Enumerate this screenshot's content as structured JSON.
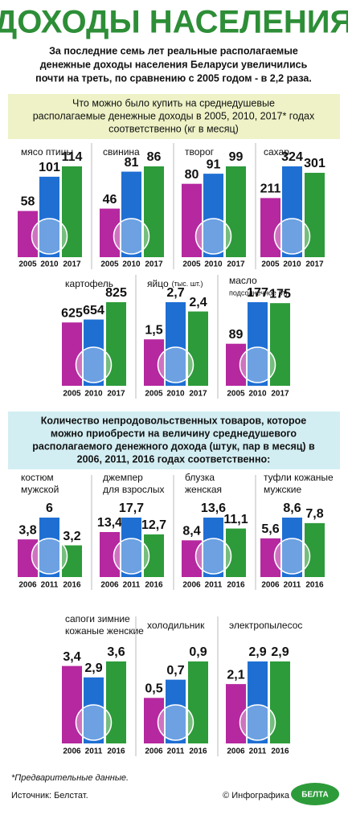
{
  "header": {
    "title": "ДОХОДЫ НАСЕЛЕНИЯ",
    "intro": [
      "За последние семь лет реальные располагаемые",
      "денежные доходы населения Беларуси увеличились",
      "почти на треть, по сравнению с 2005 годом - в 2,2 раза."
    ]
  },
  "sections": [
    {
      "title": [
        "Что можно было купить на среднедушевые",
        "располагаемые денежные доходы в 2005, 2010, 2017* годах",
        "соответственно (кг в месяц)"
      ]
    },
    {
      "title": [
        "Количество непродовольственных товаров, которое",
        "можно приобрести на величину среднедушевого",
        "располагаемого денежного дохода (штук, пар в месяц) в",
        "2006, 2011, 2016 годах соответственно:"
      ]
    }
  ],
  "chart_data": [
    {
      "type": "bar",
      "title": [
        "мясо птицы"
      ],
      "categories": [
        "2005",
        "2010",
        "2017"
      ],
      "values": [
        58,
        101,
        114
      ],
      "colors": [
        "#b5289f",
        "#1f6fd3",
        "#2d9b3a"
      ]
    },
    {
      "type": "bar",
      "title": [
        "свинина"
      ],
      "categories": [
        "2005",
        "2010",
        "2017"
      ],
      "values": [
        46,
        81,
        86
      ],
      "colors": [
        "#b5289f",
        "#1f6fd3",
        "#2d9b3a"
      ]
    },
    {
      "type": "bar",
      "title": [
        "творог"
      ],
      "categories": [
        "2005",
        "2010",
        "2017"
      ],
      "values": [
        80,
        91,
        99
      ],
      "colors": [
        "#b5289f",
        "#1f6fd3",
        "#2d9b3a"
      ]
    },
    {
      "type": "bar",
      "title": [
        "сахар"
      ],
      "categories": [
        "2005",
        "2010",
        "2017"
      ],
      "values": [
        211,
        324,
        301
      ],
      "colors": [
        "#b5289f",
        "#1f6fd3",
        "#2d9b3a"
      ]
    },
    {
      "type": "bar",
      "title": [
        "картофель"
      ],
      "categories": [
        "2005",
        "2010",
        "2017"
      ],
      "values": [
        625,
        654,
        825
      ],
      "colors": [
        "#b5289f",
        "#1f6fd3",
        "#2d9b3a"
      ]
    },
    {
      "type": "bar",
      "title": [
        "яйцо"
      ],
      "unit": "(тыс. шт.)",
      "categories": [
        "2005",
        "2010",
        "2017"
      ],
      "values": [
        1.5,
        2.7,
        2.4
      ],
      "value_labels": [
        "1,5",
        "2,7",
        "2,4"
      ],
      "colors": [
        "#b5289f",
        "#1f6fd3",
        "#2d9b3a"
      ]
    },
    {
      "type": "bar",
      "title": [
        "масло"
      ],
      "unit": "подсолнечное (л)",
      "categories": [
        "2005",
        "2010",
        "2017"
      ],
      "values": [
        89,
        177,
        175
      ],
      "colors": [
        "#b5289f",
        "#1f6fd3",
        "#2d9b3a"
      ]
    },
    {
      "type": "bar",
      "title": [
        "костюм",
        "мужской"
      ],
      "categories": [
        "2006",
        "2011",
        "2016"
      ],
      "values": [
        3.8,
        6,
        3.2
      ],
      "value_labels": [
        "3,8",
        "6",
        "3,2"
      ],
      "colors": [
        "#b5289f",
        "#1f6fd3",
        "#2d9b3a"
      ]
    },
    {
      "type": "bar",
      "title": [
        "джемпер",
        "для взрослых"
      ],
      "categories": [
        "2006",
        "2011",
        "2016"
      ],
      "values": [
        13.4,
        17.7,
        12.7
      ],
      "value_labels": [
        "13,4",
        "17,7",
        "12,7"
      ],
      "colors": [
        "#b5289f",
        "#1f6fd3",
        "#2d9b3a"
      ]
    },
    {
      "type": "bar",
      "title": [
        "блузка",
        "женская"
      ],
      "categories": [
        "2006",
        "2011",
        "2016"
      ],
      "values": [
        8.4,
        13.6,
        11.1
      ],
      "value_labels": [
        "8,4",
        "13,6",
        "11,1"
      ],
      "colors": [
        "#b5289f",
        "#1f6fd3",
        "#2d9b3a"
      ]
    },
    {
      "type": "bar",
      "title": [
        "туфли кожаные",
        "мужские"
      ],
      "categories": [
        "2006",
        "2011",
        "2016"
      ],
      "values": [
        5.6,
        8.6,
        7.8
      ],
      "value_labels": [
        "5,6",
        "8,6",
        "7,8"
      ],
      "colors": [
        "#b5289f",
        "#1f6fd3",
        "#2d9b3a"
      ]
    },
    {
      "type": "bar",
      "title": [
        "сапоги зимние",
        "кожаные женские"
      ],
      "categories": [
        "2006",
        "2011",
        "2016"
      ],
      "values": [
        3.4,
        2.9,
        3.6
      ],
      "value_labels": [
        "3,4",
        "2,9",
        "3,6"
      ],
      "colors": [
        "#b5289f",
        "#1f6fd3",
        "#2d9b3a"
      ]
    },
    {
      "type": "bar",
      "title": [
        "холодильник"
      ],
      "categories": [
        "2006",
        "2011",
        "2016"
      ],
      "values": [
        0.5,
        0.7,
        0.9
      ],
      "value_labels": [
        "0,5",
        "0,7",
        "0,9"
      ],
      "colors": [
        "#b5289f",
        "#1f6fd3",
        "#2d9b3a"
      ]
    },
    {
      "type": "bar",
      "title": [
        "электропылесос"
      ],
      "categories": [
        "2006",
        "2011",
        "2016"
      ],
      "values": [
        2.1,
        2.9,
        2.9
      ],
      "value_labels": [
        "2,1",
        "2,9",
        "2,9"
      ],
      "colors": [
        "#b5289f",
        "#1f6fd3",
        "#2d9b3a"
      ]
    }
  ],
  "footer": {
    "note": "*Предварительные данные.",
    "source": "Источник: Белстат.",
    "credit": "© Инфографика",
    "logo": "БЕЛТА"
  }
}
